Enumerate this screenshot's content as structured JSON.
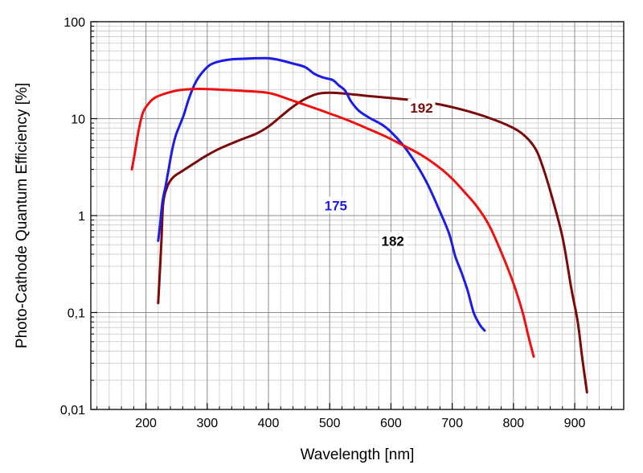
{
  "chart_data": {
    "type": "line",
    "xlabel": "Wavelength [nm]",
    "ylabel": "Photo-Cathode Quantum Efficiency [%]",
    "xlim": [
      110,
      980
    ],
    "ylim": [
      0.01,
      100
    ],
    "yscale": "log",
    "grid": true,
    "x_ticks": [
      200,
      300,
      400,
      500,
      600,
      700,
      800,
      900
    ],
    "x_tick_labels": [
      "200",
      "300",
      "400",
      "500",
      "600",
      "700",
      "800",
      "900"
    ],
    "y_ticks": [
      0.01,
      0.1,
      1,
      10,
      100
    ],
    "y_tick_labels": [
      "0,01",
      "0,1",
      "1",
      "10",
      "100"
    ],
    "series": [
      {
        "name": "192",
        "color": "#7a0a0a",
        "label_at": [
          650,
          13
        ],
        "points": [
          [
            220,
            0.125
          ],
          [
            225,
            0.5
          ],
          [
            228,
            1.3
          ],
          [
            235,
            2.0
          ],
          [
            245,
            2.5
          ],
          [
            260,
            2.9
          ],
          [
            280,
            3.5
          ],
          [
            300,
            4.2
          ],
          [
            320,
            4.9
          ],
          [
            350,
            5.9
          ],
          [
            380,
            7.0
          ],
          [
            400,
            8.3
          ],
          [
            420,
            10.5
          ],
          [
            440,
            13.3
          ],
          [
            460,
            16.0
          ],
          [
            480,
            18.0
          ],
          [
            500,
            18.5
          ],
          [
            530,
            18.0
          ],
          [
            560,
            17.2
          ],
          [
            600,
            16.3
          ],
          [
            640,
            15.4
          ],
          [
            680,
            14.0
          ],
          [
            720,
            12.2
          ],
          [
            760,
            10.2
          ],
          [
            800,
            8.0
          ],
          [
            820,
            6.5
          ],
          [
            835,
            5.0
          ],
          [
            845,
            3.6
          ],
          [
            860,
            1.8
          ],
          [
            880,
            0.6
          ],
          [
            895,
            0.17
          ],
          [
            905,
            0.08
          ],
          [
            912,
            0.035
          ],
          [
            920,
            0.015
          ]
        ]
      },
      {
        "name": "175",
        "color": "#1c1ce6",
        "label_at": [
          510,
          1.27
        ],
        "points": [
          [
            220,
            0.55
          ],
          [
            223,
            0.8
          ],
          [
            227,
            1.4
          ],
          [
            232,
            2.0
          ],
          [
            237,
            3.0
          ],
          [
            242,
            4.5
          ],
          [
            248,
            6.5
          ],
          [
            255,
            8.5
          ],
          [
            262,
            11
          ],
          [
            270,
            16
          ],
          [
            280,
            23
          ],
          [
            292,
            30
          ],
          [
            305,
            36
          ],
          [
            320,
            39
          ],
          [
            340,
            41
          ],
          [
            360,
            41.5
          ],
          [
            380,
            42
          ],
          [
            400,
            42
          ],
          [
            420,
            40
          ],
          [
            440,
            37
          ],
          [
            460,
            34
          ],
          [
            475,
            29
          ],
          [
            490,
            26.5
          ],
          [
            505,
            25
          ],
          [
            515,
            22
          ],
          [
            525,
            19.5
          ],
          [
            535,
            15
          ],
          [
            548,
            12
          ],
          [
            565,
            10.2
          ],
          [
            585,
            8.7
          ],
          [
            600,
            7.3
          ],
          [
            620,
            5.3
          ],
          [
            640,
            3.5
          ],
          [
            660,
            2.1
          ],
          [
            680,
            1.1
          ],
          [
            695,
            0.65
          ],
          [
            705,
            0.38
          ],
          [
            715,
            0.26
          ],
          [
            725,
            0.17
          ],
          [
            735,
            0.1
          ],
          [
            745,
            0.075
          ],
          [
            753,
            0.065
          ]
        ]
      },
      {
        "name": "182",
        "color": "#ee1111",
        "label_at": [
          603,
          0.55
        ],
        "points": [
          [
            177,
            3.0
          ],
          [
            182,
            4.5
          ],
          [
            188,
            7.5
          ],
          [
            195,
            11.5
          ],
          [
            205,
            14.5
          ],
          [
            215,
            16.5
          ],
          [
            230,
            18.0
          ],
          [
            250,
            19.5
          ],
          [
            275,
            20.2
          ],
          [
            300,
            20.2
          ],
          [
            330,
            19.8
          ],
          [
            360,
            19.3
          ],
          [
            390,
            18.8
          ],
          [
            410,
            17.8
          ],
          [
            440,
            15.3
          ],
          [
            470,
            13.2
          ],
          [
            500,
            11.3
          ],
          [
            530,
            9.6
          ],
          [
            560,
            8.0
          ],
          [
            590,
            6.6
          ],
          [
            620,
            5.3
          ],
          [
            650,
            4.2
          ],
          [
            680,
            3.1
          ],
          [
            700,
            2.4
          ],
          [
            720,
            1.75
          ],
          [
            740,
            1.25
          ],
          [
            760,
            0.8
          ],
          [
            780,
            0.42
          ],
          [
            800,
            0.2
          ],
          [
            815,
            0.1
          ],
          [
            825,
            0.055
          ],
          [
            833,
            0.035
          ]
        ]
      }
    ]
  }
}
